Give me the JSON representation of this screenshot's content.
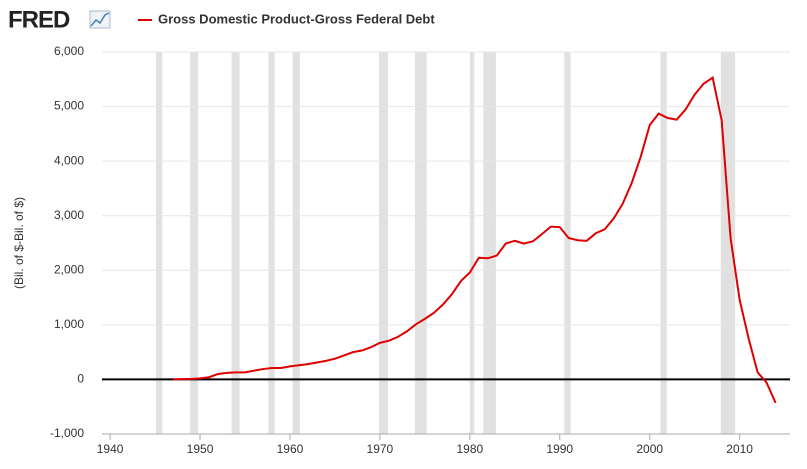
{
  "logo": "FRED",
  "chart_data": {
    "type": "line",
    "y_axis_label": "(Bil. of $-Bil. of $)",
    "series": [
      {
        "name": "Gross Domestic Product-Gross Federal Debt",
        "color": "#e00000",
        "values": [
          0,
          5,
          10,
          20,
          40,
          100,
          120,
          130,
          130,
          160,
          190,
          210,
          210,
          240,
          260,
          280,
          310,
          340,
          380,
          440,
          500,
          530,
          590,
          670,
          710,
          780,
          880,
          1010,
          1110,
          1220,
          1370,
          1560,
          1800,
          1960,
          2230,
          2220,
          2270,
          2490,
          2540,
          2490,
          2530,
          2660,
          2800,
          2790,
          2590,
          2550,
          2540,
          2680,
          2750,
          2950,
          3220,
          3600,
          4080,
          4660,
          4870,
          4790,
          4760,
          4950,
          5220,
          5420,
          5530,
          4750,
          2580,
          1460,
          750,
          130,
          -60,
          -430
        ]
      }
    ],
    "x": [
      1947,
      1948,
      1949,
      1950,
      1951,
      1952,
      1953,
      1954,
      1955,
      1956,
      1957,
      1958,
      1959,
      1960,
      1961,
      1962,
      1963,
      1964,
      1965,
      1966,
      1967,
      1968,
      1969,
      1970,
      1971,
      1972,
      1973,
      1974,
      1975,
      1976,
      1977,
      1978,
      1979,
      1980,
      1981,
      1982,
      1983,
      1984,
      1985,
      1986,
      1987,
      1988,
      1989,
      1990,
      1991,
      1992,
      1993,
      1994,
      1995,
      1996,
      1997,
      1998,
      1999,
      2000,
      2001,
      2002,
      2003,
      2004,
      2005,
      2006,
      2007,
      2008,
      2009,
      2010,
      2011,
      2012,
      2013,
      2014
    ],
    "shaded_periods": [
      [
        1945.1,
        1945.8
      ],
      [
        1948.9,
        1949.8
      ],
      [
        1953.5,
        1954.4
      ],
      [
        1957.6,
        1958.3
      ],
      [
        1960.3,
        1961.1
      ],
      [
        1969.9,
        1970.9
      ],
      [
        1973.9,
        1975.2
      ],
      [
        1980.0,
        1980.5
      ],
      [
        1981.5,
        1982.9
      ],
      [
        1990.5,
        1991.2
      ],
      [
        2001.2,
        2001.9
      ],
      [
        2007.9,
        2009.5
      ]
    ],
    "shade_color": "#e1e1e1",
    "xlim": [
      1939.1,
      2015.6
    ],
    "xticks": [
      1940,
      1950,
      1960,
      1970,
      1980,
      1990,
      2000,
      2010
    ],
    "ylim": [
      -1000,
      6000
    ],
    "yticks": [
      {
        "value": -1000,
        "label": "-1,000"
      },
      0,
      {
        "value": 1000,
        "label": "1,000"
      },
      {
        "value": 2000,
        "label": "2,000"
      },
      {
        "value": 3000,
        "label": "3,000"
      },
      {
        "value": 4000,
        "label": "4,000"
      },
      {
        "value": 5000,
        "label": "5,000"
      },
      {
        "value": 6000,
        "label": "6,000"
      }
    ],
    "grid": true
  }
}
